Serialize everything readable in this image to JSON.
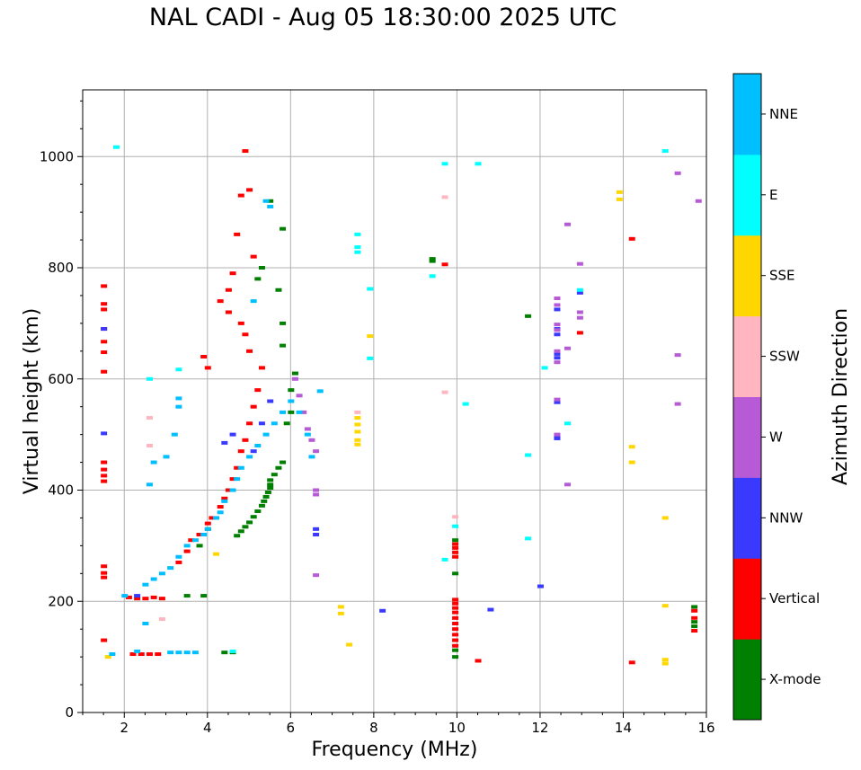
{
  "chart_data": {
    "type": "scatter",
    "title": "NAL CADI - Aug 05 18:30:00 2025 UTC",
    "xlabel": "Frequency (MHz)",
    "ylabel": "Virtual height (km)",
    "xlim": [
      1,
      16
    ],
    "ylim": [
      0,
      1120
    ],
    "xticks": [
      2,
      4,
      6,
      8,
      10,
      12,
      14,
      16
    ],
    "yticks": [
      0,
      200,
      400,
      600,
      800,
      1000
    ],
    "grid": true,
    "colorbar": {
      "label": "Azimuth Direction",
      "categories": [
        {
          "name": "X-mode",
          "color": "#008000"
        },
        {
          "name": "Vertical",
          "color": "#ff0000"
        },
        {
          "name": "NNW",
          "color": "#3a3aff"
        },
        {
          "name": "W",
          "color": "#b65ad6"
        },
        {
          "name": "SSW",
          "color": "#ffb6c1"
        },
        {
          "name": "SSE",
          "color": "#ffd700"
        },
        {
          "name": "E",
          "color": "#00ffff"
        },
        {
          "name": "NNE",
          "color": "#00bfff"
        }
      ]
    },
    "series": [
      {
        "name": "X-mode",
        "points": [
          [
            4.4,
            108
          ],
          [
            4.6,
            108
          ],
          [
            4.7,
            318
          ],
          [
            4.8,
            326
          ],
          [
            4.9,
            334
          ],
          [
            5.0,
            342
          ],
          [
            5.1,
            352
          ],
          [
            5.2,
            362
          ],
          [
            5.3,
            372
          ],
          [
            5.35,
            380
          ],
          [
            5.4,
            388
          ],
          [
            5.45,
            396
          ],
          [
            5.5,
            404
          ],
          [
            5.5,
            410
          ],
          [
            5.5,
            418
          ],
          [
            5.6,
            428
          ],
          [
            5.7,
            440
          ],
          [
            5.8,
            450
          ],
          [
            5.9,
            520
          ],
          [
            6.0,
            540
          ],
          [
            6.0,
            580
          ],
          [
            6.1,
            610
          ],
          [
            5.8,
            660
          ],
          [
            5.8,
            700
          ],
          [
            5.7,
            760
          ],
          [
            5.8,
            870
          ],
          [
            5.5,
            920
          ],
          [
            5.3,
            800
          ],
          [
            5.2,
            780
          ],
          [
            3.9,
            210
          ],
          [
            3.5,
            210
          ],
          [
            3.8,
            300
          ],
          [
            4.0,
            330
          ],
          [
            9.4,
            816
          ],
          [
            9.4,
            812
          ],
          [
            9.95,
            310
          ],
          [
            9.95,
            250
          ],
          [
            9.95,
            112
          ],
          [
            9.95,
            100
          ],
          [
            11.7,
            713
          ],
          [
            15.7,
            190
          ],
          [
            15.7,
            163
          ],
          [
            15.7,
            155
          ]
        ]
      },
      {
        "name": "Vertical",
        "points": [
          [
            1.5,
            767
          ],
          [
            1.5,
            735
          ],
          [
            1.5,
            725
          ],
          [
            1.5,
            690
          ],
          [
            1.5,
            667
          ],
          [
            1.5,
            648
          ],
          [
            1.5,
            613
          ],
          [
            1.5,
            450
          ],
          [
            1.5,
            437
          ],
          [
            1.5,
            426
          ],
          [
            1.5,
            416
          ],
          [
            1.5,
            263
          ],
          [
            1.5,
            251
          ],
          [
            1.5,
            243
          ],
          [
            1.5,
            130
          ],
          [
            2.1,
            207
          ],
          [
            2.3,
            205
          ],
          [
            2.5,
            205
          ],
          [
            2.7,
            207
          ],
          [
            2.9,
            205
          ],
          [
            2.2,
            105
          ],
          [
            2.4,
            105
          ],
          [
            2.6,
            105
          ],
          [
            2.8,
            105
          ],
          [
            3.3,
            270
          ],
          [
            3.5,
            290
          ],
          [
            3.6,
            310
          ],
          [
            3.8,
            320
          ],
          [
            4.0,
            340
          ],
          [
            4.1,
            350
          ],
          [
            4.3,
            370
          ],
          [
            4.4,
            385
          ],
          [
            4.5,
            400
          ],
          [
            4.6,
            420
          ],
          [
            4.7,
            440
          ],
          [
            4.8,
            470
          ],
          [
            4.9,
            490
          ],
          [
            5.0,
            520
          ],
          [
            5.1,
            550
          ],
          [
            5.2,
            580
          ],
          [
            5.3,
            620
          ],
          [
            5.0,
            650
          ],
          [
            4.9,
            680
          ],
          [
            4.8,
            700
          ],
          [
            4.5,
            720
          ],
          [
            4.3,
            740
          ],
          [
            4.5,
            760
          ],
          [
            4.6,
            790
          ],
          [
            4.7,
            860
          ],
          [
            4.8,
            930
          ],
          [
            4.9,
            1010
          ],
          [
            5.0,
            940
          ],
          [
            5.1,
            820
          ],
          [
            4.0,
            620
          ],
          [
            3.9,
            640
          ],
          [
            9.7,
            806
          ],
          [
            9.95,
            303
          ],
          [
            9.95,
            296
          ],
          [
            9.95,
            288
          ],
          [
            9.95,
            280
          ],
          [
            9.95,
            203
          ],
          [
            9.95,
            196
          ],
          [
            9.95,
            188
          ],
          [
            9.95,
            180
          ],
          [
            9.95,
            170
          ],
          [
            9.95,
            160
          ],
          [
            9.95,
            150
          ],
          [
            9.95,
            140
          ],
          [
            9.95,
            130
          ],
          [
            9.95,
            120
          ],
          [
            10.5,
            93
          ],
          [
            12.95,
            683
          ],
          [
            14.2,
            852
          ],
          [
            14.2,
            90
          ],
          [
            15.7,
            183
          ],
          [
            15.7,
            170
          ],
          [
            15.7,
            147
          ]
        ]
      },
      {
        "name": "NNW",
        "points": [
          [
            1.5,
            690
          ],
          [
            1.5,
            502
          ],
          [
            2.3,
            210
          ],
          [
            4.4,
            485
          ],
          [
            4.6,
            500
          ],
          [
            5.1,
            470
          ],
          [
            5.3,
            520
          ],
          [
            5.5,
            560
          ],
          [
            6.6,
            330
          ],
          [
            6.6,
            320
          ],
          [
            8.2,
            183
          ],
          [
            10.8,
            185
          ],
          [
            12.4,
            725
          ],
          [
            12.4,
            690
          ],
          [
            12.4,
            680
          ],
          [
            12.4,
            645
          ],
          [
            12.4,
            638
          ],
          [
            12.4,
            558
          ],
          [
            12.4,
            497
          ],
          [
            12.4,
            493
          ],
          [
            12.0,
            227
          ],
          [
            12.95,
            755
          ]
        ]
      },
      {
        "name": "W",
        "points": [
          [
            6.1,
            600
          ],
          [
            6.2,
            570
          ],
          [
            6.3,
            540
          ],
          [
            6.4,
            510
          ],
          [
            6.5,
            490
          ],
          [
            6.6,
            470
          ],
          [
            6.6,
            400
          ],
          [
            6.6,
            392
          ],
          [
            6.6,
            247
          ],
          [
            12.4,
            745
          ],
          [
            12.4,
            733
          ],
          [
            12.4,
            698
          ],
          [
            12.4,
            688
          ],
          [
            12.4,
            650
          ],
          [
            12.4,
            630
          ],
          [
            12.4,
            563
          ],
          [
            12.4,
            500
          ],
          [
            12.65,
            878
          ],
          [
            12.65,
            655
          ],
          [
            12.65,
            410
          ],
          [
            12.95,
            807
          ],
          [
            12.95,
            720
          ],
          [
            12.95,
            710
          ],
          [
            15.3,
            970
          ],
          [
            15.3,
            643
          ],
          [
            15.3,
            555
          ],
          [
            15.8,
            920
          ]
        ]
      },
      {
        "name": "SSW",
        "points": [
          [
            2.6,
            530
          ],
          [
            2.6,
            480
          ],
          [
            2.9,
            168
          ],
          [
            9.7,
            927
          ],
          [
            9.7,
            576
          ],
          [
            9.95,
            352
          ],
          [
            7.6,
            540
          ]
        ]
      },
      {
        "name": "SSE",
        "points": [
          [
            1.6,
            100
          ],
          [
            4.2,
            285
          ],
          [
            7.2,
            190
          ],
          [
            7.2,
            178
          ],
          [
            7.4,
            122
          ],
          [
            7.6,
            530
          ],
          [
            7.6,
            518
          ],
          [
            7.6,
            505
          ],
          [
            7.6,
            490
          ],
          [
            7.6,
            482
          ],
          [
            7.9,
            677
          ],
          [
            13.9,
            936
          ],
          [
            13.9,
            923
          ],
          [
            14.2,
            478
          ],
          [
            14.2,
            450
          ],
          [
            15.0,
            350
          ],
          [
            15.0,
            192
          ],
          [
            15.0,
            95
          ],
          [
            15.0,
            88
          ]
        ]
      },
      {
        "name": "E",
        "points": [
          [
            1.8,
            1017
          ],
          [
            2.6,
            600
          ],
          [
            3.3,
            617
          ],
          [
            4.6,
            110
          ],
          [
            7.6,
            860
          ],
          [
            7.6,
            837
          ],
          [
            7.6,
            828
          ],
          [
            7.9,
            762
          ],
          [
            7.9,
            637
          ],
          [
            9.7,
            987
          ],
          [
            9.4,
            785
          ],
          [
            9.7,
            275
          ],
          [
            9.95,
            335
          ],
          [
            10.2,
            555
          ],
          [
            10.5,
            987
          ],
          [
            11.7,
            463
          ],
          [
            11.7,
            313
          ],
          [
            12.1,
            620
          ],
          [
            12.65,
            520
          ],
          [
            12.95,
            760
          ],
          [
            15.0,
            1010
          ]
        ]
      },
      {
        "name": "NNE",
        "points": [
          [
            1.7,
            105
          ],
          [
            2.0,
            210
          ],
          [
            2.5,
            230
          ],
          [
            2.7,
            240
          ],
          [
            2.9,
            250
          ],
          [
            3.1,
            260
          ],
          [
            3.3,
            280
          ],
          [
            3.5,
            300
          ],
          [
            3.7,
            310
          ],
          [
            3.9,
            320
          ],
          [
            4.0,
            330
          ],
          [
            4.2,
            350
          ],
          [
            4.3,
            360
          ],
          [
            4.4,
            380
          ],
          [
            4.6,
            400
          ],
          [
            4.7,
            420
          ],
          [
            4.8,
            440
          ],
          [
            5.0,
            460
          ],
          [
            5.2,
            480
          ],
          [
            5.4,
            500
          ],
          [
            5.6,
            520
          ],
          [
            5.8,
            540
          ],
          [
            6.0,
            560
          ],
          [
            6.2,
            540
          ],
          [
            6.4,
            500
          ],
          [
            6.5,
            460
          ],
          [
            6.7,
            578
          ],
          [
            3.3,
            565
          ],
          [
            3.3,
            550
          ],
          [
            3.2,
            500
          ],
          [
            3.0,
            460
          ],
          [
            2.7,
            450
          ],
          [
            2.6,
            410
          ],
          [
            2.5,
            160
          ],
          [
            3.1,
            108
          ],
          [
            3.3,
            108
          ],
          [
            3.5,
            108
          ],
          [
            3.7,
            108
          ],
          [
            2.3,
            110
          ],
          [
            5.1,
            740
          ],
          [
            5.4,
            920
          ],
          [
            5.5,
            910
          ]
        ]
      }
    ]
  }
}
